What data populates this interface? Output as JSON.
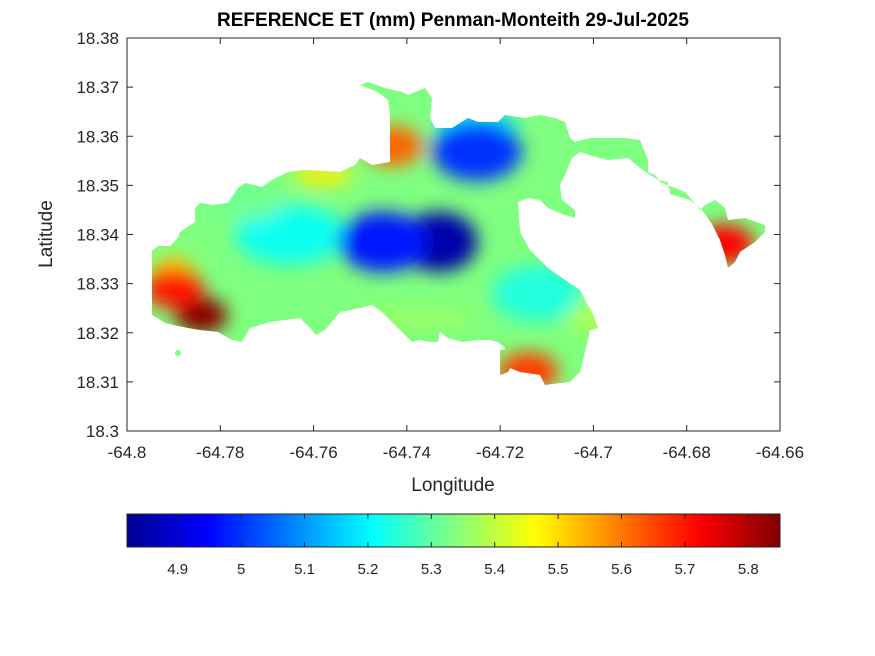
{
  "chart_data": {
    "type": "heatmap",
    "title": "REFERENCE ET (mm) Penman-Monteith 29-Jul-2025",
    "xlabel": "Longitude",
    "ylabel": "Latitude",
    "xlim": [
      -64.8,
      -64.66
    ],
    "ylim": [
      18.3,
      18.38
    ],
    "xticks": [
      "-64.8",
      "-64.78",
      "-64.76",
      "-64.74",
      "-64.72",
      "-64.7",
      "-64.68",
      "-64.66"
    ],
    "yticks": [
      "18.3",
      "18.31",
      "18.32",
      "18.33",
      "18.34",
      "18.35",
      "18.36",
      "18.37",
      "18.38"
    ],
    "colormap": "jet",
    "clim": [
      4.82,
      5.85
    ],
    "colorbar_ticks": [
      "4.9",
      "5",
      "5.1",
      "5.2",
      "5.3",
      "5.4",
      "5.5",
      "5.6",
      "5.7",
      "5.8"
    ],
    "colorbar_position": "bottom",
    "grid": false,
    "field_features": [
      {
        "description": "minimum",
        "lon": -64.733,
        "lat": 18.3385,
        "value": 4.86
      },
      {
        "description": "low",
        "lon": -64.745,
        "lat": 18.3385,
        "value": 4.97
      },
      {
        "description": "low",
        "lon": -64.725,
        "lat": 18.357,
        "value": 5.0
      },
      {
        "description": "maximum",
        "lon": -64.784,
        "lat": 18.3235,
        "value": 5.84
      },
      {
        "description": "high",
        "lon": -64.79,
        "lat": 18.329,
        "value": 5.7
      },
      {
        "description": "high",
        "lon": -64.672,
        "lat": 18.338,
        "value": 5.72
      },
      {
        "description": "high",
        "lon": -64.743,
        "lat": 18.358,
        "value": 5.62
      },
      {
        "description": "high",
        "lon": -64.714,
        "lat": 18.312,
        "value": 5.66
      }
    ]
  }
}
